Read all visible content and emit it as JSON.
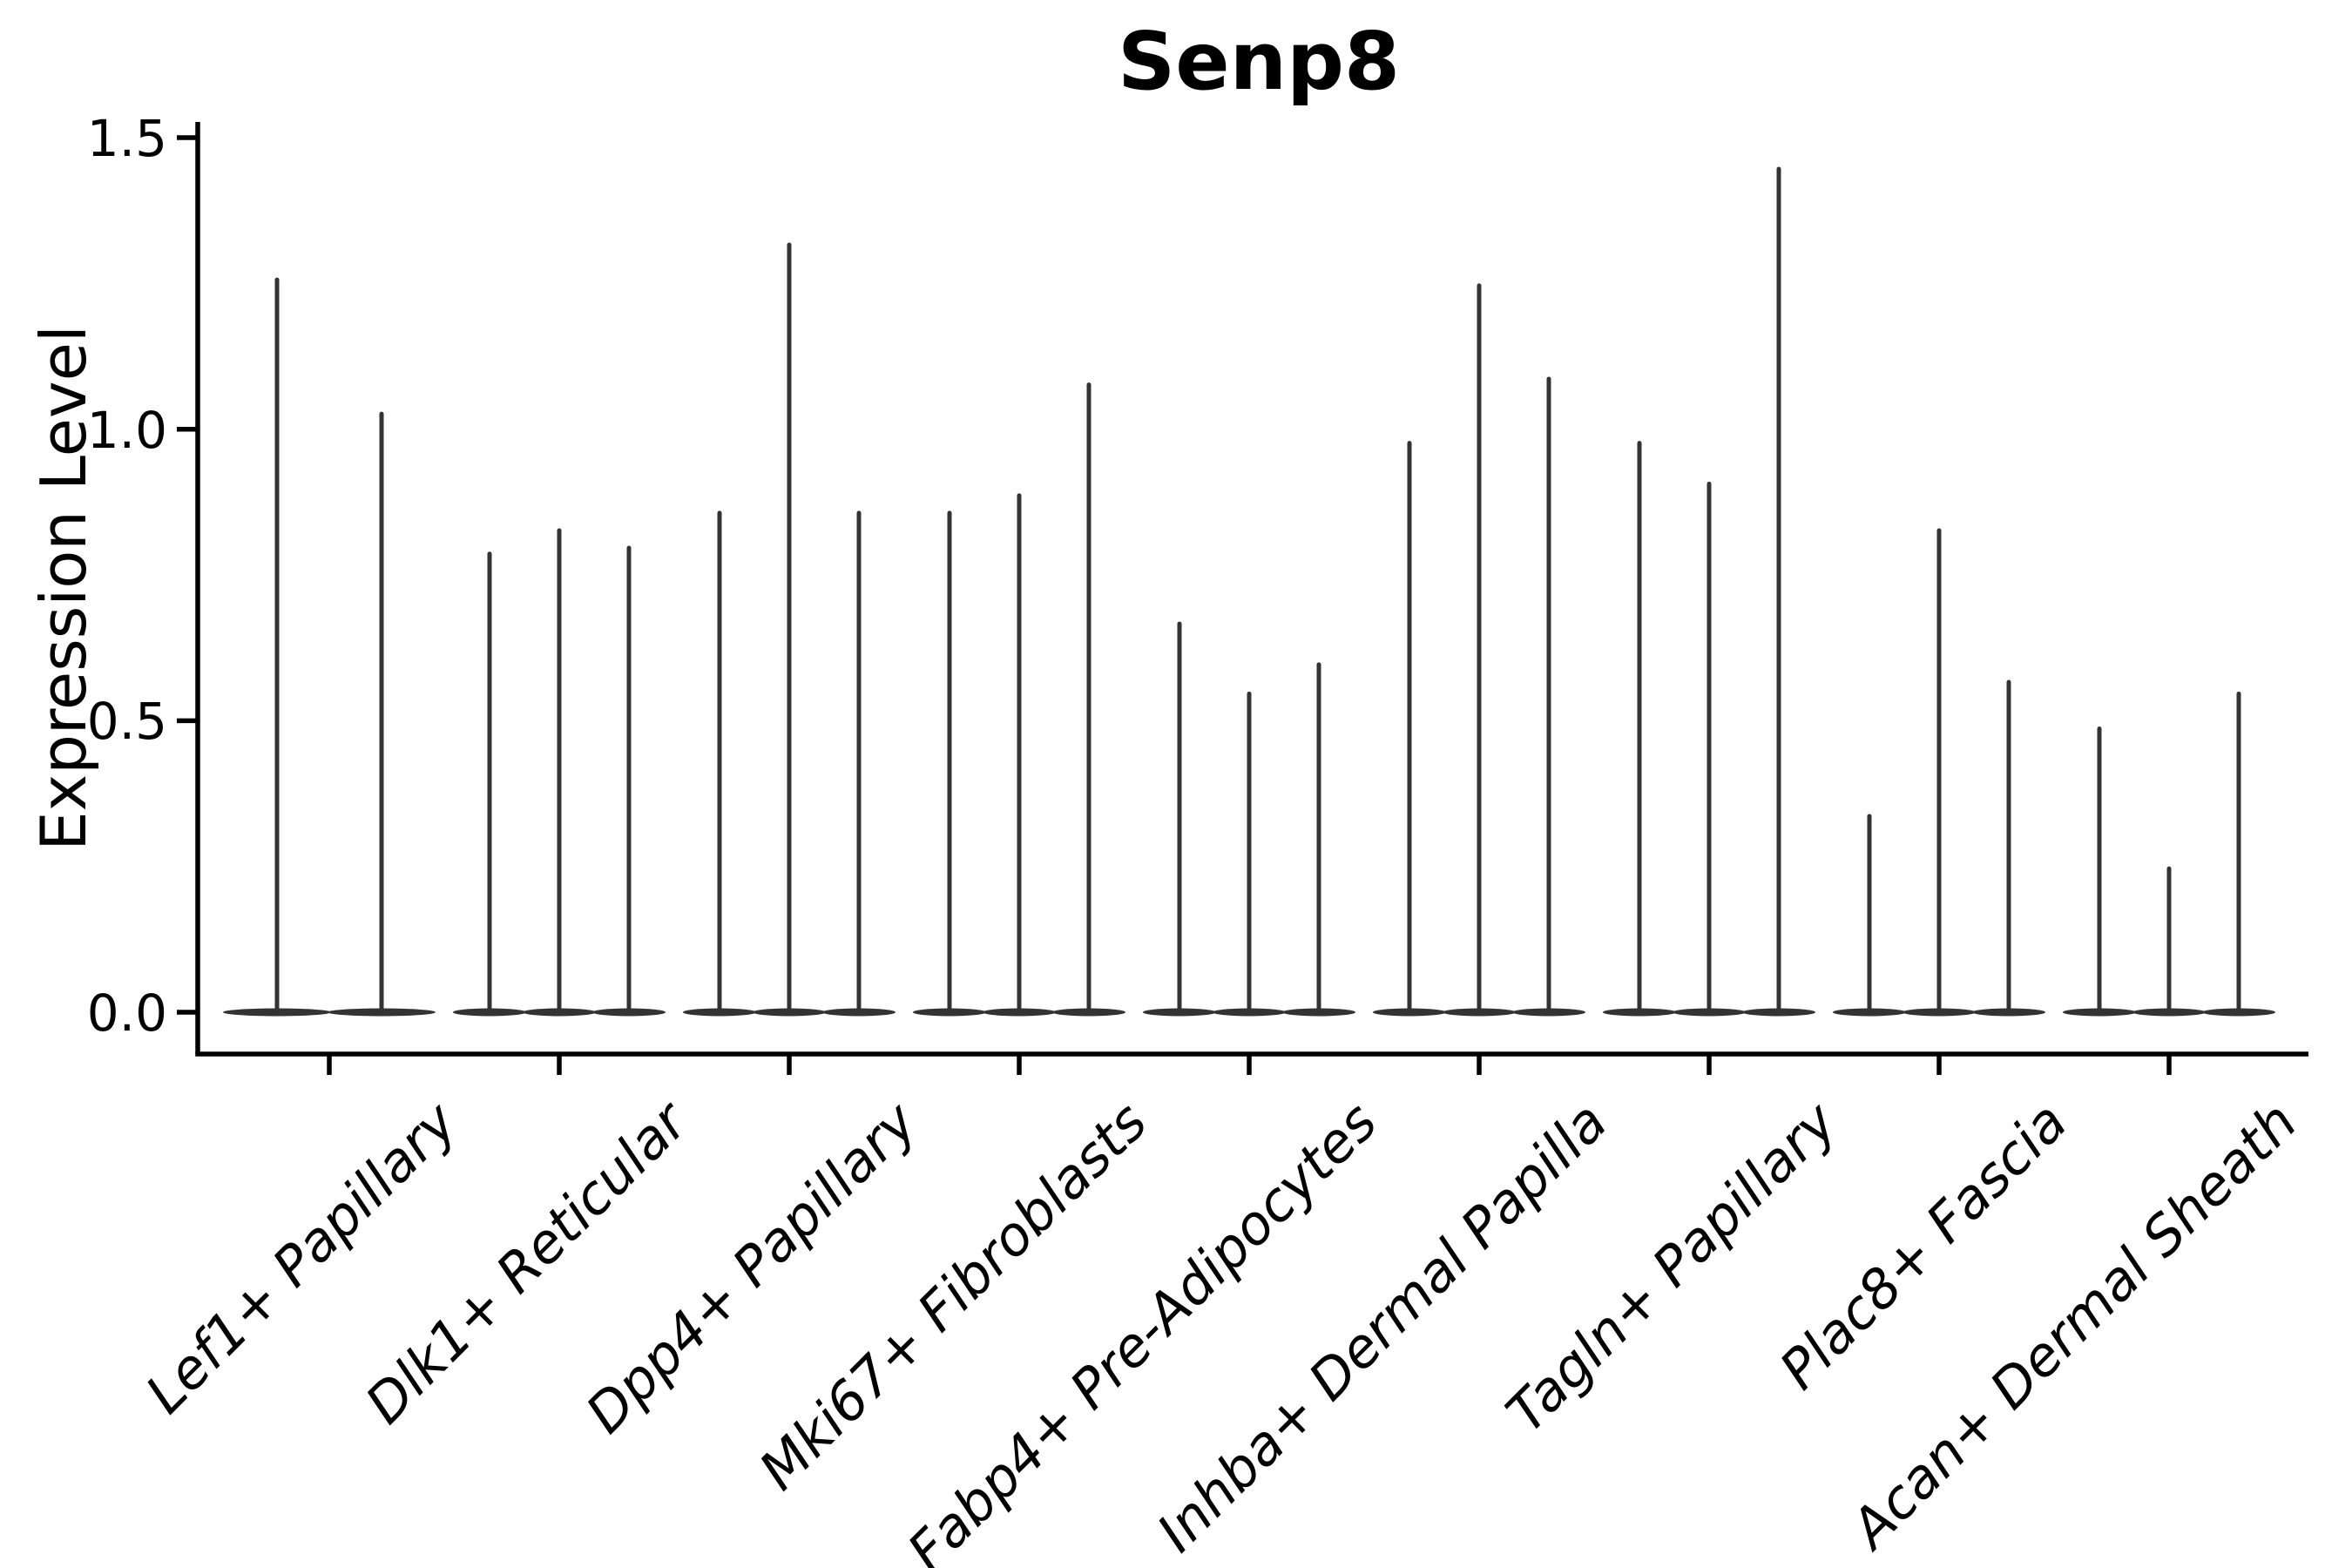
{
  "figure": {
    "background": "#ffffff"
  },
  "chart_data": {
    "type": "violin",
    "title": "Senp8",
    "ylabel": "Expression Level",
    "xlabel": "",
    "ylim": [
      0.0,
      1.5
    ],
    "yticks": [
      "0.0",
      "0.5",
      "1.0",
      "1.5"
    ],
    "ytick_values": [
      0.0,
      0.5,
      1.0,
      1.5
    ],
    "grid": false,
    "legend_position": "none",
    "style_note": "single-cell expression violins: each violin is a wide flat lens at 0 with a thin vertical spike up to the max expression value",
    "colors": {
      "violin": "#333333",
      "axis": "#000000",
      "text": "#000000",
      "background": "#ffffff"
    },
    "categories": [
      {
        "label": "Lef1+ Papillary",
        "violins": [
          1.26,
          1.03
        ]
      },
      {
        "label": "Dlk1+ Reticular",
        "violins": [
          0.79,
          0.83,
          0.8
        ]
      },
      {
        "label": "Dpp4+ Papillary",
        "violins": [
          0.86,
          1.32,
          0.86
        ]
      },
      {
        "label": "Mki67+ Fibroblasts",
        "violins": [
          0.86,
          0.89,
          1.08
        ]
      },
      {
        "label": "Fabp4+ Pre-Adipocytes",
        "violins": [
          0.67,
          0.55,
          0.6
        ]
      },
      {
        "label": "Inhba+ Dermal Papilla",
        "violins": [
          0.98,
          1.25,
          1.09
        ]
      },
      {
        "label": "Tagln+ Papillary",
        "violins": [
          0.98,
          0.91,
          1.45
        ]
      },
      {
        "label": "Plac8+ Fascia",
        "violins": [
          0.34,
          0.83,
          0.57
        ]
      },
      {
        "label": "Acan+ Dermal Sheath",
        "violins": [
          0.49,
          0.25,
          0.55
        ]
      }
    ]
  }
}
